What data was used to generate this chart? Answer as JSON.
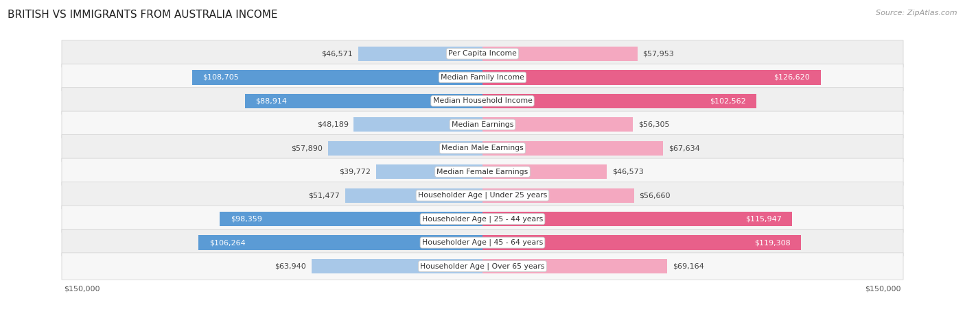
{
  "title": "BRITISH VS IMMIGRANTS FROM AUSTRALIA INCOME",
  "source": "Source: ZipAtlas.com",
  "categories": [
    "Per Capita Income",
    "Median Family Income",
    "Median Household Income",
    "Median Earnings",
    "Median Male Earnings",
    "Median Female Earnings",
    "Householder Age | Under 25 years",
    "Householder Age | 25 - 44 years",
    "Householder Age | 45 - 64 years",
    "Householder Age | Over 65 years"
  ],
  "british_values": [
    46571,
    108705,
    88914,
    48189,
    57890,
    39772,
    51477,
    98359,
    106264,
    63940
  ],
  "immigrant_values": [
    57953,
    126620,
    102562,
    56305,
    67634,
    46573,
    56660,
    115947,
    119308,
    69164
  ],
  "british_labels": [
    "$46,571",
    "$108,705",
    "$88,914",
    "$48,189",
    "$57,890",
    "$39,772",
    "$51,477",
    "$98,359",
    "$106,264",
    "$63,940"
  ],
  "immigrant_labels": [
    "$57,953",
    "$126,620",
    "$102,562",
    "$56,305",
    "$67,634",
    "$46,573",
    "$56,660",
    "$115,947",
    "$119,308",
    "$69,164"
  ],
  "max_value": 150000,
  "british_color_high": "#5b9bd5",
  "british_color_low": "#a8c8e8",
  "immigrant_color_high": "#e8608a",
  "immigrant_color_low": "#f4a8c0",
  "label_threshold": 70000,
  "bar_height": 0.62,
  "row_bg_color": "#e8e8e8",
  "row_bg_color2": "#f0f0f0",
  "title_fontsize": 11,
  "source_fontsize": 8,
  "label_fontsize": 8,
  "legend_fontsize": 8.5,
  "axis_label_fontsize": 8,
  "category_fontsize": 7.8
}
